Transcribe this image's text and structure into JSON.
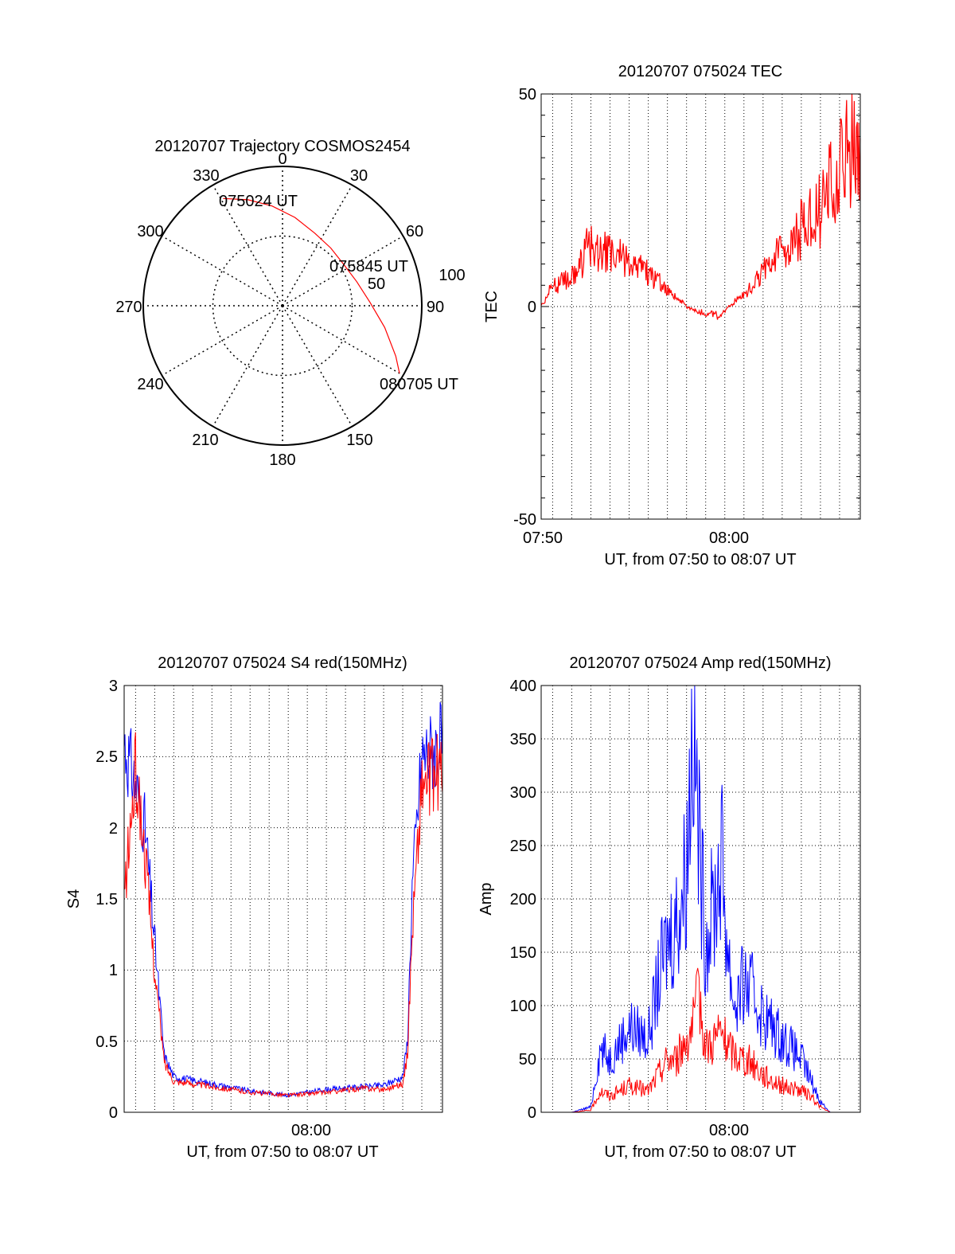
{
  "chart_data": [
    {
      "type": "polar",
      "title": "20120707 Trajectory COSMOS2454",
      "angle_labels": [
        "0",
        "30",
        "60",
        "90",
        "150",
        "180",
        "210",
        "240",
        "270",
        "300",
        "330"
      ],
      "radial_labels": [
        "100",
        "50"
      ],
      "rlim": [
        0,
        100
      ],
      "grid": true,
      "series": [
        {
          "color": "#ff0000",
          "points": [
            {
              "azimuth": 331,
              "r": 88
            },
            {
              "azimuth": 342,
              "r": 80
            },
            {
              "azimuth": 354,
              "r": 72
            },
            {
              "azimuth": 8,
              "r": 64
            },
            {
              "azimuth": 24,
              "r": 57
            },
            {
              "azimuth": 40,
              "r": 54
            },
            {
              "azimuth": 56,
              "r": 53
            },
            {
              "azimuth": 72,
              "r": 56
            },
            {
              "azimuth": 88,
              "r": 63
            },
            {
              "azimuth": 102,
              "r": 75
            },
            {
              "azimuth": 114,
              "r": 89
            },
            {
              "azimuth": 120,
              "r": 97
            }
          ]
        }
      ],
      "annotations": [
        "075024 UT",
        "075845 UT",
        "080705 UT"
      ]
    },
    {
      "type": "line",
      "title": "20120707 075024 TEC",
      "xlabel": "UT, from 07:50 to 08:07 UT",
      "ylabel": "TEC",
      "xlim": [
        "07:50:24",
        "08:07:05"
      ],
      "ylim": [
        -50,
        50
      ],
      "xticks": [
        "07:50",
        "08:00"
      ],
      "yticks": [
        "50",
        "0",
        "-50"
      ],
      "grid": true,
      "series": [
        {
          "color": "#ff0000",
          "x": [
            "07:50:24",
            "07:51:00",
            "07:51:30",
            "07:52:00",
            "07:52:20",
            "07:52:40",
            "07:53:00",
            "07:53:30",
            "07:54:00",
            "07:55:00",
            "07:56:00",
            "07:57:00",
            "07:58:00",
            "07:59:00",
            "07:59:40",
            "08:00:00",
            "08:00:30",
            "08:01:00",
            "08:02:00",
            "08:03:00",
            "08:04:00",
            "08:05:00",
            "08:05:30",
            "08:06:00",
            "08:06:30",
            "08:07:05"
          ],
          "y": [
            0,
            5,
            6,
            7,
            8,
            13,
            14,
            13,
            12,
            11,
            8,
            4,
            0,
            -2,
            -2,
            -1,
            1,
            3,
            8,
            13,
            18,
            23,
            28,
            32,
            36,
            40
          ]
        }
      ]
    },
    {
      "type": "line",
      "title": "20120707 075024 S4 red(150MHz)",
      "xlabel": "UT, from 07:50 to 08:07 UT",
      "ylabel": "S4",
      "xlim": [
        "07:50:24",
        "08:07:05"
      ],
      "ylim": [
        0,
        3
      ],
      "xticks": [
        "08:00"
      ],
      "yticks": [
        "3",
        "2.5",
        "2",
        "1.5",
        "1",
        "0.5",
        "0"
      ],
      "grid": true,
      "series": [
        {
          "color": "#0000ff",
          "x": [
            "07:50:24",
            "07:51:00",
            "07:51:30",
            "07:52:00",
            "07:52:30",
            "07:53:00",
            "07:55:00",
            "07:57:00",
            "07:59:00",
            "08:01:00",
            "08:03:00",
            "08:04:00",
            "08:05:00",
            "08:05:15",
            "08:05:30",
            "08:06:00",
            "08:07:05"
          ],
          "y": [
            2.6,
            2.3,
            2.0,
            1.2,
            0.4,
            0.25,
            0.2,
            0.15,
            0.12,
            0.16,
            0.18,
            0.19,
            0.25,
            0.5,
            1.6,
            2.5,
            2.6
          ]
        },
        {
          "color": "#ff0000",
          "x": [
            "07:50:24",
            "07:51:00",
            "07:51:30",
            "07:52:00",
            "07:52:30",
            "07:53:00",
            "07:55:00",
            "07:57:00",
            "07:59:00",
            "08:01:00",
            "08:03:00",
            "08:04:00",
            "08:05:00",
            "08:05:15",
            "08:05:30",
            "08:06:00",
            "08:07:05"
          ],
          "y": [
            1.5,
            2.4,
            1.8,
            1.0,
            0.35,
            0.22,
            0.18,
            0.14,
            0.12,
            0.14,
            0.17,
            0.16,
            0.2,
            0.4,
            1.3,
            2.3,
            2.4
          ]
        }
      ]
    },
    {
      "type": "line",
      "title": "20120707 075024 Amp red(150MHz)",
      "xlabel": "UT, from 07:50 to 08:07 UT",
      "ylabel": "Amp",
      "xlim": [
        "07:50:24",
        "08:07:05"
      ],
      "ylim": [
        0,
        400
      ],
      "xticks": [
        "08:00"
      ],
      "yticks": [
        "400",
        "350",
        "300",
        "250",
        "200",
        "150",
        "100",
        "50",
        "0"
      ],
      "grid": true,
      "series": [
        {
          "color": "#0000ff",
          "x": [
            "07:50:24",
            "07:52:00",
            "07:53:00",
            "07:53:30",
            "07:54:00",
            "07:55:00",
            "07:56:00",
            "07:56:30",
            "07:57:00",
            "07:57:30",
            "07:58:00",
            "07:58:20",
            "07:58:40",
            "07:59:00",
            "07:59:30",
            "07:59:50",
            "08:00:10",
            "08:00:30",
            "08:01:00",
            "08:01:30",
            "08:02:00",
            "08:03:00",
            "08:04:00",
            "08:04:30",
            "08:05:00",
            "08:05:30",
            "08:07:05"
          ],
          "y": [
            0,
            0,
            5,
            60,
            50,
            80,
            70,
            120,
            160,
            180,
            230,
            380,
            250,
            160,
            200,
            240,
            150,
            100,
            120,
            110,
            90,
            70,
            50,
            30,
            10,
            0,
            0
          ]
        },
        {
          "color": "#ff0000",
          "x": [
            "07:50:24",
            "07:52:00",
            "07:53:00",
            "07:53:30",
            "07:54:00",
            "07:55:00",
            "07:56:00",
            "07:56:30",
            "07:57:00",
            "07:57:30",
            "07:58:00",
            "07:58:20",
            "07:58:40",
            "07:59:00",
            "07:59:30",
            "07:59:50",
            "08:00:10",
            "08:00:30",
            "08:01:00",
            "08:01:30",
            "08:02:00",
            "08:03:00",
            "08:04:00",
            "08:04:30",
            "08:05:00",
            "08:05:30",
            "08:07:05"
          ],
          "y": [
            0,
            0,
            2,
            20,
            15,
            25,
            20,
            35,
            50,
            50,
            70,
            80,
            110,
            60,
            70,
            75,
            60,
            55,
            50,
            45,
            35,
            25,
            20,
            15,
            5,
            0,
            0
          ]
        }
      ]
    }
  ]
}
